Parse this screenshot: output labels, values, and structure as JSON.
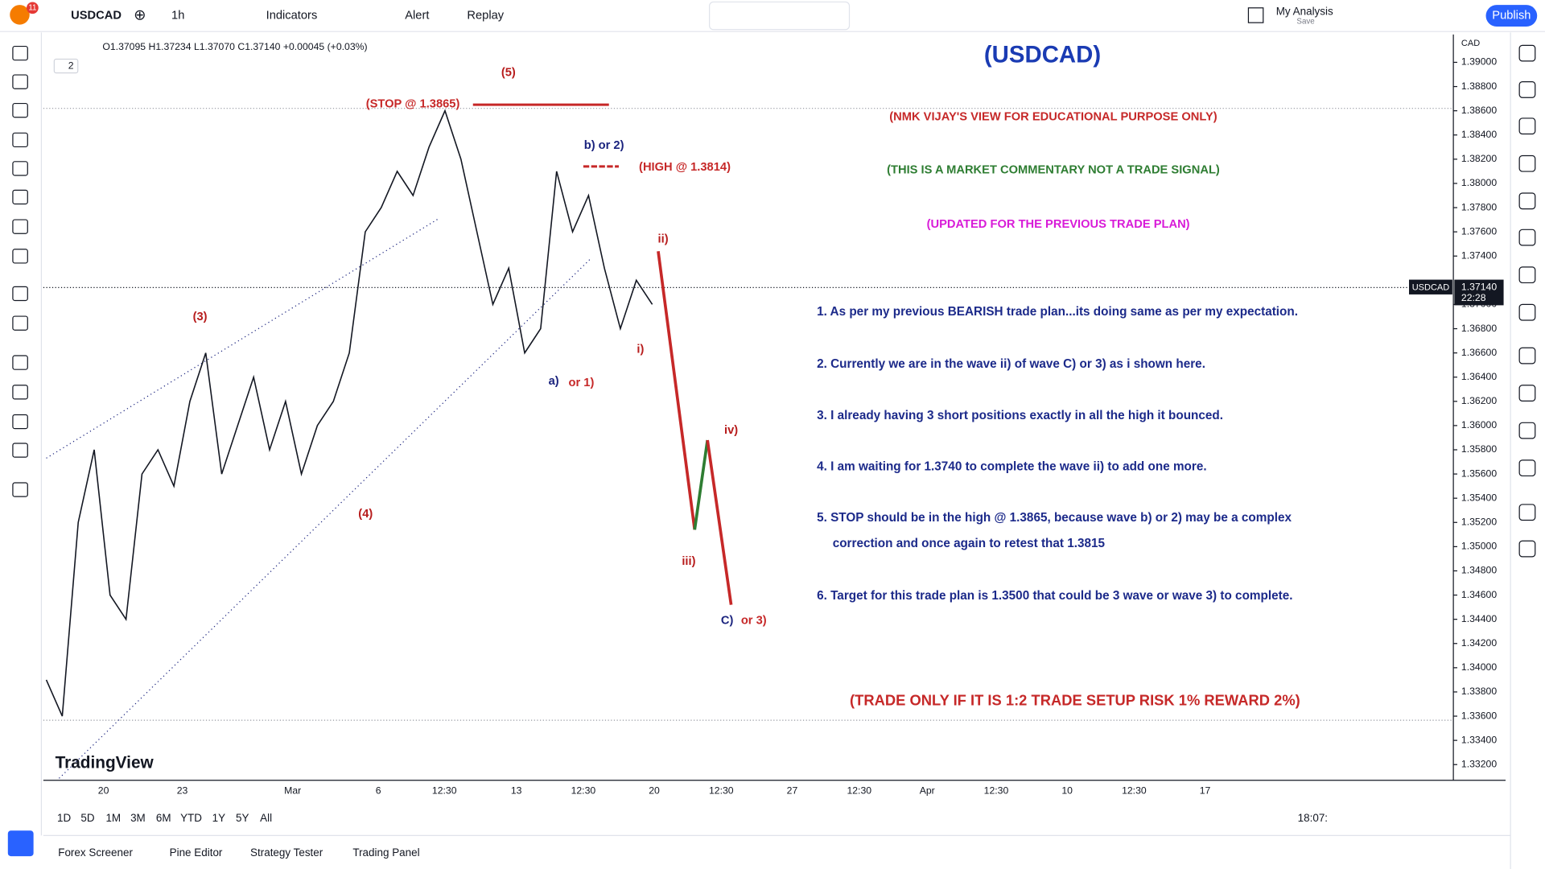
{
  "toolbar": {
    "badge": "11",
    "symbol": "USDCAD",
    "interval": "1h",
    "indicators": "Indicators",
    "alert": "Alert",
    "replay": "Replay",
    "layout": "My Analysis",
    "layout_sub": "Save",
    "publish": "Publish"
  },
  "legend": {
    "ohlc": "O1.37095 H1.37234 L1.37070 C1.37140 +0.00045 (+0.03%)",
    "count": "2"
  },
  "chart": {
    "currency": "CAD",
    "ylim": [
      1.3307,
      1.3923
    ],
    "yticks": [
      {
        "value": 1.39,
        "label": "1.39000"
      },
      {
        "value": 1.388,
        "label": "1.38800"
      },
      {
        "value": 1.386,
        "label": "1.38600"
      },
      {
        "value": 1.384,
        "label": "1.38400"
      },
      {
        "value": 1.382,
        "label": "1.38200"
      },
      {
        "value": 1.38,
        "label": "1.38000"
      },
      {
        "value": 1.378,
        "label": "1.37800"
      },
      {
        "value": 1.376,
        "label": "1.37600"
      },
      {
        "value": 1.374,
        "label": "1.37400"
      },
      {
        "value": 1.37,
        "label": "1.37000"
      },
      {
        "value": 1.368,
        "label": "1.36800"
      },
      {
        "value": 1.366,
        "label": "1.36600"
      },
      {
        "value": 1.364,
        "label": "1.36400"
      },
      {
        "value": 1.362,
        "label": "1.36200"
      },
      {
        "value": 1.36,
        "label": "1.36000"
      },
      {
        "value": 1.358,
        "label": "1.35800"
      },
      {
        "value": 1.356,
        "label": "1.35600"
      },
      {
        "value": 1.354,
        "label": "1.35400"
      },
      {
        "value": 1.352,
        "label": "1.35200"
      },
      {
        "value": 1.35,
        "label": "1.35000"
      },
      {
        "value": 1.348,
        "label": "1.34800"
      },
      {
        "value": 1.346,
        "label": "1.34600"
      },
      {
        "value": 1.344,
        "label": "1.34400"
      },
      {
        "value": 1.342,
        "label": "1.34200"
      },
      {
        "value": 1.34,
        "label": "1.34000"
      },
      {
        "value": 1.338,
        "label": "1.33800"
      },
      {
        "value": 1.336,
        "label": "1.33600"
      },
      {
        "value": 1.334,
        "label": "1.33400"
      },
      {
        "value": 1.332,
        "label": "1.33200"
      }
    ],
    "price_label": "USDCAD",
    "last_price": {
      "value": 1.3714,
      "label": "1.37140"
    },
    "countdown": "22:28",
    "time_labels": [
      "20",
      "23",
      "Mar",
      "6",
      "12:30",
      "13",
      "12:30",
      "20",
      "12:30",
      "27",
      "12:30",
      "Apr",
      "12:30",
      "10",
      "12:30",
      "17"
    ],
    "prices": [
      1.339,
      1.336,
      1.352,
      1.358,
      1.346,
      1.344,
      1.356,
      1.358,
      1.355,
      1.362,
      1.366,
      1.356,
      1.36,
      1.364,
      1.358,
      1.362,
      1.356,
      1.36,
      1.362,
      1.366,
      1.376,
      1.378,
      1.381,
      1.379,
      1.383,
      1.386,
      1.382,
      1.376,
      1.37,
      1.373,
      1.366,
      1.368,
      1.381,
      1.376,
      1.379,
      1.373,
      1.368,
      1.372,
      1.37
    ],
    "projection": [
      1.3744,
      1.3514,
      1.3588,
      1.3452
    ],
    "stop_level": 1.3865,
    "high_level": 1.3814,
    "wave_labels": [
      "(5)",
      "(STOP @ 1.3865)",
      "b) or 2)",
      "(HIGH @ 1.3814)",
      "(3)",
      "(4)",
      "a)",
      "or 1)",
      "i)",
      "ii)",
      "iv)",
      "iii)",
      "C)",
      "or 3)"
    ],
    "brand": "TradingView"
  },
  "commentary": {
    "title": "(USDCAD)",
    "disclaimer": "(NMK VIJAY'S VIEW FOR EDUCATIONAL PURPOSE ONLY)",
    "note": "(THIS IS A MARKET COMMENTARY NOT A TRADE SIGNAL)",
    "updated": "(UPDATED FOR THE PREVIOUS TRADE PLAN)",
    "points": [
      "1. As per my previous BEARISH trade plan...its doing same as per my expectation.",
      "2. Currently we are in the wave ii) of wave C) or 3) as i shown here.",
      "3. I already having 3 short positions exactly in all the high it bounced.",
      "4. I am waiting for 1.3740 to complete the wave ii) to add one more.",
      "5. STOP should be in the high @ 1.3865, because wave b) or 2) may be a complex",
      "correction and once again to retest that 1.3815",
      "6. Target for this trade plan is 1.3500 that could be 3 wave or wave 3) to complete."
    ],
    "footer": "(TRADE ONLY IF IT IS 1:2 TRADE SETUP RISK 1% REWARD 2%)"
  },
  "bottom": {
    "ranges": [
      "1D",
      "5D",
      "1M",
      "3M",
      "6M",
      "YTD",
      "1Y",
      "5Y",
      "All"
    ],
    "clock": "18:07:",
    "tabs": [
      "Forex Screener",
      "Pine Editor",
      "Strategy Tester",
      "Trading Panel"
    ]
  }
}
